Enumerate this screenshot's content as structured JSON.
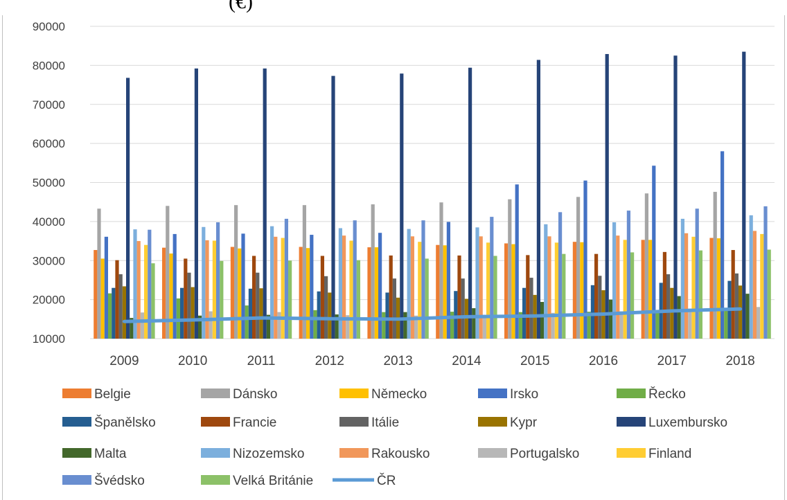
{
  "chart_data": {
    "type": "bar",
    "title_fragment": "(€)",
    "xlabel": "",
    "ylabel": "",
    "ylim": [
      10000,
      90000
    ],
    "yticks": [
      10000,
      20000,
      30000,
      40000,
      50000,
      60000,
      70000,
      80000,
      90000
    ],
    "grid": true,
    "legend_position": "bottom",
    "categories": [
      "2009",
      "2010",
      "2011",
      "2012",
      "2013",
      "2014",
      "2015",
      "2016",
      "2017",
      "2018"
    ],
    "series": [
      {
        "name": "Belgie",
        "type": "bar",
        "color": "#ed7d31",
        "values": [
          32700,
          33300,
          33500,
          33500,
          33400,
          34000,
          34400,
          34800,
          35300,
          35800
        ]
      },
      {
        "name": "Dánsko",
        "type": "bar",
        "color": "#a5a5a5",
        "values": [
          43300,
          44000,
          44200,
          44200,
          44400,
          44900,
          45700,
          46300,
          47200,
          47600
        ]
      },
      {
        "name": "Německo",
        "type": "bar",
        "color": "#ffc000",
        "values": [
          30500,
          31800,
          33100,
          33200,
          33400,
          33900,
          34200,
          34700,
          35300,
          35700
        ]
      },
      {
        "name": "Irsko",
        "type": "bar",
        "color": "#4472c4",
        "values": [
          36100,
          36800,
          36900,
          36600,
          37100,
          39900,
          49500,
          50500,
          54300,
          58000
        ]
      },
      {
        "name": "Řecko",
        "type": "bar",
        "color": "#70ad47",
        "values": [
          21600,
          20300,
          18500,
          17300,
          16800,
          16900,
          16800,
          16900,
          17100,
          17600
        ]
      },
      {
        "name": "Španělsko",
        "type": "bar",
        "color": "#255e91",
        "values": [
          23000,
          23000,
          22800,
          22100,
          21800,
          22200,
          23000,
          23700,
          24300,
          24800
        ]
      },
      {
        "name": "Francie",
        "type": "bar",
        "color": "#9e480e",
        "values": [
          30100,
          30500,
          31200,
          31200,
          31300,
          31300,
          31400,
          31700,
          32200,
          32700
        ]
      },
      {
        "name": "Itálie",
        "type": "bar",
        "color": "#636363",
        "values": [
          26500,
          26900,
          26900,
          26000,
          25400,
          25400,
          25600,
          26100,
          26500,
          26700
        ]
      },
      {
        "name": "Kypr",
        "type": "bar",
        "color": "#997300",
        "values": [
          23400,
          23200,
          22900,
          21800,
          20500,
          20200,
          21200,
          22400,
          23000,
          23600
        ]
      },
      {
        "name": "Luxembursko",
        "type": "bar",
        "color": "#264478",
        "values": [
          76800,
          79200,
          79200,
          77300,
          77900,
          79400,
          81400,
          82900,
          82500,
          83500
        ]
      },
      {
        "name": "Malta",
        "type": "bar",
        "color": "#43682b",
        "values": [
          15300,
          15900,
          16100,
          16200,
          16800,
          17800,
          19400,
          20000,
          20900,
          21500
        ]
      },
      {
        "name": "Nizozemsko",
        "type": "bar",
        "color": "#7cafdd",
        "values": [
          38000,
          38600,
          38800,
          38300,
          38100,
          38500,
          39300,
          39800,
          40700,
          41600
        ]
      },
      {
        "name": "Rakousko",
        "type": "bar",
        "color": "#f1975a",
        "values": [
          35000,
          35200,
          36100,
          36400,
          36200,
          36200,
          36200,
          36400,
          37000,
          37600
        ]
      },
      {
        "name": "Portugalsko",
        "type": "bar",
        "color": "#b7b7b7",
        "values": [
          16700,
          17000,
          16800,
          16000,
          15900,
          16100,
          16600,
          17000,
          17700,
          18100
        ]
      },
      {
        "name": "Finland",
        "type": "bar",
        "color": "#ffcd33",
        "values": [
          34000,
          35100,
          35800,
          35100,
          34800,
          34600,
          34600,
          35300,
          36100,
          36800
        ]
      },
      {
        "name": "Švédsko",
        "type": "bar",
        "color": "#698ed0",
        "values": [
          37900,
          39800,
          40700,
          40300,
          40300,
          41200,
          42400,
          42800,
          43300,
          43900
        ]
      },
      {
        "name": "Velká Británie",
        "type": "bar",
        "color": "#8cc168",
        "values": [
          29300,
          29900,
          30000,
          30100,
          30500,
          31200,
          31700,
          32100,
          32600,
          32800
        ]
      },
      {
        "name": "ČR",
        "type": "line",
        "color": "#5b9bd5",
        "values": [
          14400,
          14800,
          15300,
          15100,
          15000,
          15600,
          15800,
          16300,
          17100,
          17600
        ]
      }
    ]
  }
}
